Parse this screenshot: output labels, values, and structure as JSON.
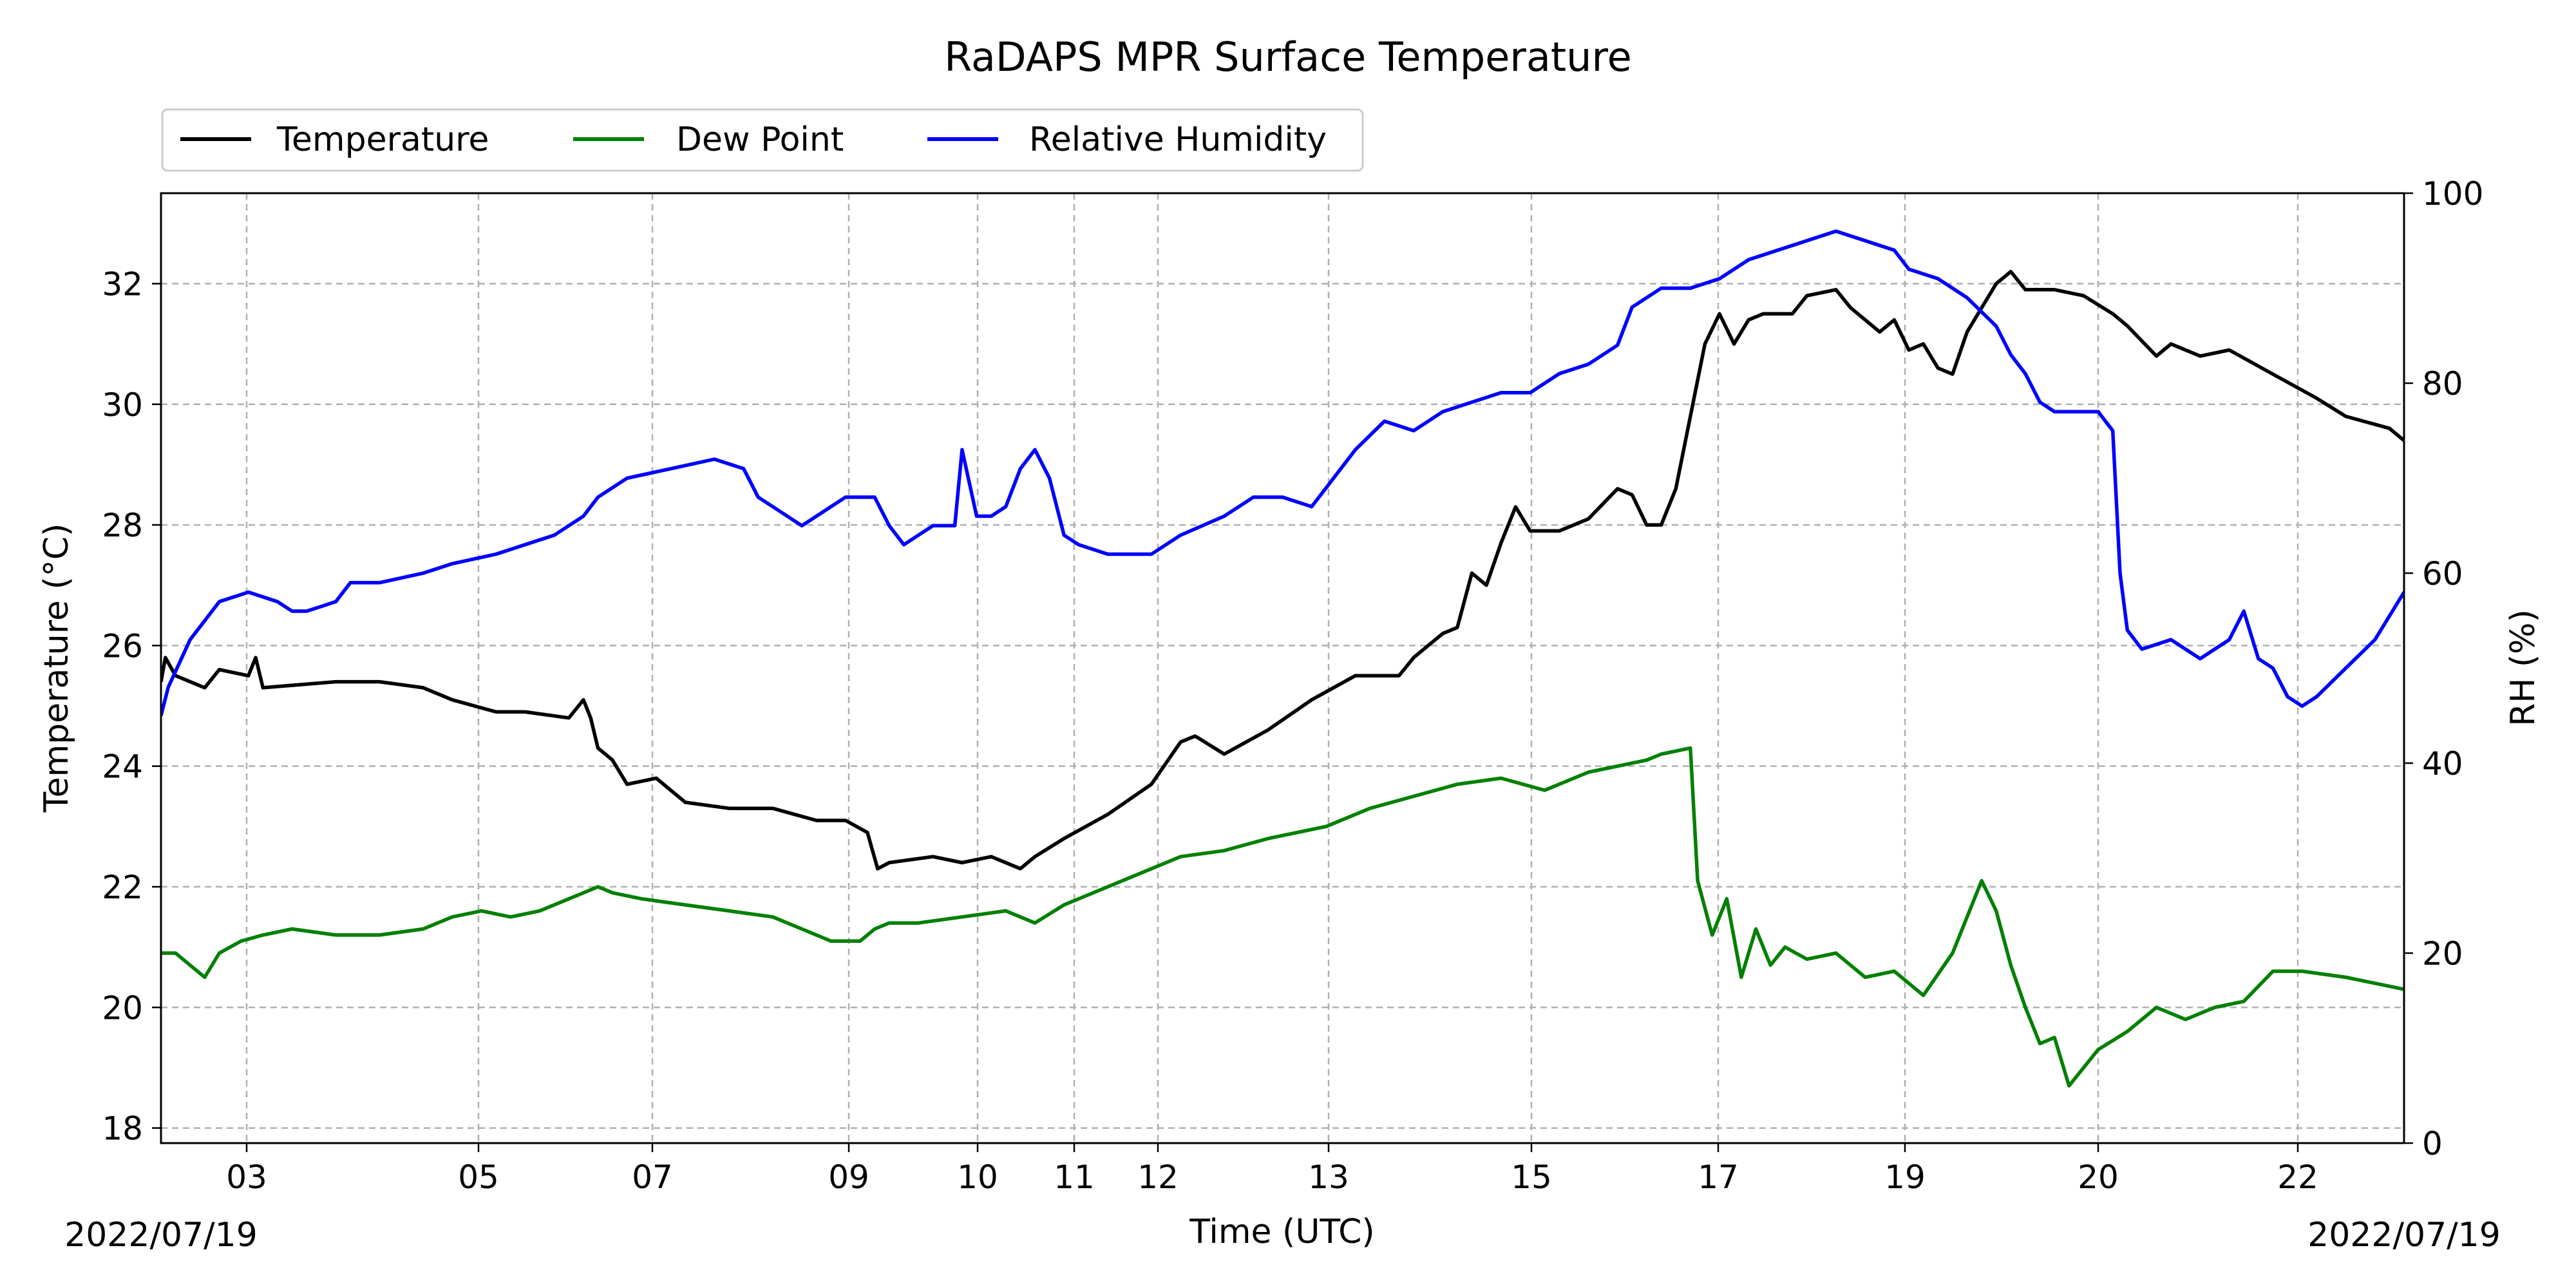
{
  "chart_data": {
    "type": "line",
    "title": "RaDAPS MPR Surface Temperature",
    "xlabel": "Time (UTC)",
    "ylabel_left": "Temperature ($^\\circ$C)",
    "ylabel_left_display": "Temperature (°C)",
    "ylabel_right": "RH (%)",
    "date_start": "2022/07/19",
    "date_end": "2022/07/19",
    "x_ticks": [
      "03",
      "05",
      "07",
      "09",
      "10",
      "11",
      "12",
      "13",
      "15",
      "17",
      "19",
      "20",
      "22"
    ],
    "ylim_left": [
      17.75,
      33.5
    ],
    "ylim_right": [
      0,
      100
    ],
    "yticks_left": [
      18,
      20,
      22,
      24,
      26,
      28,
      30,
      32
    ],
    "yticks_right": [
      0,
      20,
      40,
      60,
      80,
      100
    ],
    "grid": true,
    "legend": {
      "placement": "top-left, above plot",
      "entries": [
        "Temperature",
        "Dew Point",
        "Relative Humidity"
      ]
    },
    "colors": {
      "Temperature": "#000000",
      "Dew Point": "#008000",
      "Relative Humidity": "#0000ff"
    },
    "series": [
      {
        "name": "Temperature",
        "axis": "left",
        "points": [
          [
            0,
            25.4
          ],
          [
            0.03,
            25.8
          ],
          [
            0.1,
            25.5
          ],
          [
            0.3,
            25.3
          ],
          [
            0.4,
            25.6
          ],
          [
            0.6,
            25.5
          ],
          [
            0.65,
            25.8
          ],
          [
            0.7,
            25.3
          ],
          [
            1.2,
            25.4
          ],
          [
            1.5,
            25.4
          ],
          [
            1.8,
            25.3
          ],
          [
            2.0,
            25.1
          ],
          [
            2.3,
            24.9
          ],
          [
            2.5,
            24.9
          ],
          [
            2.8,
            24.8
          ],
          [
            2.9,
            25.1
          ],
          [
            2.95,
            24.8
          ],
          [
            3.0,
            24.3
          ],
          [
            3.1,
            24.1
          ],
          [
            3.2,
            23.7
          ],
          [
            3.4,
            23.8
          ],
          [
            3.6,
            23.4
          ],
          [
            3.9,
            23.3
          ],
          [
            4.2,
            23.3
          ],
          [
            4.5,
            23.1
          ],
          [
            4.7,
            23.1
          ],
          [
            4.85,
            22.9
          ],
          [
            4.92,
            22.3
          ],
          [
            5.0,
            22.4
          ],
          [
            5.3,
            22.5
          ],
          [
            5.5,
            22.4
          ],
          [
            5.7,
            22.5
          ],
          [
            5.9,
            22.3
          ],
          [
            6.0,
            22.5
          ],
          [
            6.2,
            22.8
          ],
          [
            6.5,
            23.2
          ],
          [
            6.8,
            23.7
          ],
          [
            7.0,
            24.4
          ],
          [
            7.1,
            24.5
          ],
          [
            7.3,
            24.2
          ],
          [
            7.6,
            24.6
          ],
          [
            7.9,
            25.1
          ],
          [
            8.2,
            25.5
          ],
          [
            8.5,
            25.5
          ],
          [
            8.6,
            25.8
          ],
          [
            8.8,
            26.2
          ],
          [
            8.9,
            26.3
          ],
          [
            9.0,
            27.2
          ],
          [
            9.1,
            27.0
          ],
          [
            9.2,
            27.7
          ],
          [
            9.3,
            28.3
          ],
          [
            9.4,
            27.9
          ],
          [
            9.6,
            27.9
          ],
          [
            9.8,
            28.1
          ],
          [
            10.0,
            28.6
          ],
          [
            10.1,
            28.5
          ],
          [
            10.2,
            28.0
          ],
          [
            10.3,
            28.0
          ],
          [
            10.4,
            28.6
          ],
          [
            10.5,
            29.8
          ],
          [
            10.6,
            31.0
          ],
          [
            10.7,
            31.5
          ],
          [
            10.8,
            31.0
          ],
          [
            10.9,
            31.4
          ],
          [
            11.0,
            31.5
          ],
          [
            11.2,
            31.5
          ],
          [
            11.3,
            31.8
          ],
          [
            11.5,
            31.9
          ],
          [
            11.6,
            31.6
          ],
          [
            11.8,
            31.2
          ],
          [
            11.9,
            31.4
          ],
          [
            12.0,
            30.9
          ],
          [
            12.1,
            31.0
          ],
          [
            12.2,
            30.6
          ],
          [
            12.3,
            30.5
          ],
          [
            12.4,
            31.2
          ],
          [
            12.5,
            31.6
          ],
          [
            12.6,
            32.0
          ],
          [
            12.7,
            32.2
          ],
          [
            12.8,
            31.9
          ],
          [
            13.0,
            31.9
          ],
          [
            13.2,
            31.8
          ],
          [
            13.4,
            31.5
          ],
          [
            13.5,
            31.3
          ],
          [
            13.7,
            30.8
          ],
          [
            13.8,
            31.0
          ],
          [
            14.0,
            30.8
          ],
          [
            14.2,
            30.9
          ],
          [
            14.5,
            30.5
          ],
          [
            14.8,
            30.1
          ],
          [
            15.0,
            29.8
          ],
          [
            15.3,
            29.6
          ],
          [
            15.4,
            29.4
          ]
        ]
      },
      {
        "name": "Dew Point",
        "axis": "left",
        "points": [
          [
            0,
            20.9
          ],
          [
            0.1,
            20.9
          ],
          [
            0.2,
            20.7
          ],
          [
            0.3,
            20.5
          ],
          [
            0.4,
            20.9
          ],
          [
            0.55,
            21.1
          ],
          [
            0.7,
            21.2
          ],
          [
            0.9,
            21.3
          ],
          [
            1.2,
            21.2
          ],
          [
            1.5,
            21.2
          ],
          [
            1.8,
            21.3
          ],
          [
            2.0,
            21.5
          ],
          [
            2.2,
            21.6
          ],
          [
            2.4,
            21.5
          ],
          [
            2.6,
            21.6
          ],
          [
            2.8,
            21.8
          ],
          [
            3.0,
            22.0
          ],
          [
            3.1,
            21.9
          ],
          [
            3.3,
            21.8
          ],
          [
            3.6,
            21.7
          ],
          [
            3.9,
            21.6
          ],
          [
            4.2,
            21.5
          ],
          [
            4.4,
            21.3
          ],
          [
            4.6,
            21.1
          ],
          [
            4.8,
            21.1
          ],
          [
            4.9,
            21.3
          ],
          [
            5.0,
            21.4
          ],
          [
            5.2,
            21.4
          ],
          [
            5.5,
            21.5
          ],
          [
            5.8,
            21.6
          ],
          [
            6.0,
            21.4
          ],
          [
            6.2,
            21.7
          ],
          [
            6.5,
            22.0
          ],
          [
            6.8,
            22.3
          ],
          [
            7.0,
            22.5
          ],
          [
            7.3,
            22.6
          ],
          [
            7.6,
            22.8
          ],
          [
            8.0,
            23.0
          ],
          [
            8.3,
            23.3
          ],
          [
            8.6,
            23.5
          ],
          [
            8.9,
            23.7
          ],
          [
            9.2,
            23.8
          ],
          [
            9.5,
            23.6
          ],
          [
            9.8,
            23.9
          ],
          [
            10.0,
            24.0
          ],
          [
            10.2,
            24.1
          ],
          [
            10.3,
            24.2
          ],
          [
            10.5,
            24.3
          ],
          [
            10.55,
            22.1
          ],
          [
            10.65,
            21.2
          ],
          [
            10.75,
            21.8
          ],
          [
            10.85,
            20.5
          ],
          [
            10.95,
            21.3
          ],
          [
            11.05,
            20.7
          ],
          [
            11.15,
            21.0
          ],
          [
            11.3,
            20.8
          ],
          [
            11.5,
            20.9
          ],
          [
            11.7,
            20.5
          ],
          [
            11.9,
            20.6
          ],
          [
            12.1,
            20.2
          ],
          [
            12.3,
            20.9
          ],
          [
            12.5,
            22.1
          ],
          [
            12.6,
            21.6
          ],
          [
            12.7,
            20.7
          ],
          [
            12.8,
            20.0
          ],
          [
            12.9,
            19.4
          ],
          [
            13.0,
            19.5
          ],
          [
            13.1,
            18.7
          ],
          [
            13.2,
            19.0
          ],
          [
            13.3,
            19.3
          ],
          [
            13.5,
            19.6
          ],
          [
            13.7,
            20.0
          ],
          [
            13.9,
            19.8
          ],
          [
            14.1,
            20.0
          ],
          [
            14.3,
            20.1
          ],
          [
            14.5,
            20.6
          ],
          [
            14.7,
            20.6
          ],
          [
            15.0,
            20.5
          ],
          [
            15.2,
            20.4
          ],
          [
            15.4,
            20.3
          ]
        ]
      },
      {
        "name": "Relative Humidity",
        "axis": "right",
        "points": [
          [
            0,
            45
          ],
          [
            0.05,
            48
          ],
          [
            0.2,
            53
          ],
          [
            0.4,
            57
          ],
          [
            0.6,
            58
          ],
          [
            0.8,
            57
          ],
          [
            0.9,
            56
          ],
          [
            1.0,
            56
          ],
          [
            1.2,
            57
          ],
          [
            1.3,
            59
          ],
          [
            1.5,
            59
          ],
          [
            1.8,
            60
          ],
          [
            2.0,
            61
          ],
          [
            2.3,
            62
          ],
          [
            2.5,
            63
          ],
          [
            2.7,
            64
          ],
          [
            2.9,
            66
          ],
          [
            3.0,
            68
          ],
          [
            3.2,
            70
          ],
          [
            3.5,
            71
          ],
          [
            3.8,
            72
          ],
          [
            4.0,
            71
          ],
          [
            4.1,
            68
          ],
          [
            4.3,
            66
          ],
          [
            4.4,
            65
          ],
          [
            4.6,
            67
          ],
          [
            4.7,
            68
          ],
          [
            4.9,
            68
          ],
          [
            5.0,
            65
          ],
          [
            5.1,
            63
          ],
          [
            5.2,
            64
          ],
          [
            5.3,
            65
          ],
          [
            5.45,
            65
          ],
          [
            5.5,
            73
          ],
          [
            5.6,
            66
          ],
          [
            5.7,
            66
          ],
          [
            5.8,
            67
          ],
          [
            5.9,
            71
          ],
          [
            6.0,
            73
          ],
          [
            6.1,
            70
          ],
          [
            6.2,
            64
          ],
          [
            6.3,
            63
          ],
          [
            6.5,
            62
          ],
          [
            6.6,
            62
          ],
          [
            6.8,
            62
          ],
          [
            7.0,
            64
          ],
          [
            7.3,
            66
          ],
          [
            7.5,
            68
          ],
          [
            7.7,
            68
          ],
          [
            7.9,
            67
          ],
          [
            8.0,
            69
          ],
          [
            8.2,
            73
          ],
          [
            8.4,
            76
          ],
          [
            8.6,
            75
          ],
          [
            8.8,
            77
          ],
          [
            9.0,
            78
          ],
          [
            9.2,
            79
          ],
          [
            9.4,
            79
          ],
          [
            9.6,
            81
          ],
          [
            9.8,
            82
          ],
          [
            10.0,
            84
          ],
          [
            10.1,
            88
          ],
          [
            10.3,
            90
          ],
          [
            10.5,
            90
          ],
          [
            10.7,
            91
          ],
          [
            10.9,
            93
          ],
          [
            11.1,
            94
          ],
          [
            11.3,
            95
          ],
          [
            11.5,
            96
          ],
          [
            11.7,
            95
          ],
          [
            11.9,
            94
          ],
          [
            12.0,
            92
          ],
          [
            12.2,
            91
          ],
          [
            12.4,
            89
          ],
          [
            12.6,
            86
          ],
          [
            12.7,
            83
          ],
          [
            12.8,
            81
          ],
          [
            12.9,
            78
          ],
          [
            13.0,
            77
          ],
          [
            13.2,
            77
          ],
          [
            13.3,
            77
          ],
          [
            13.4,
            75
          ],
          [
            13.45,
            60
          ],
          [
            13.5,
            54
          ],
          [
            13.6,
            52
          ],
          [
            13.8,
            53
          ],
          [
            14.0,
            51
          ],
          [
            14.2,
            53
          ],
          [
            14.3,
            56
          ],
          [
            14.4,
            51
          ],
          [
            14.5,
            50
          ],
          [
            14.6,
            47
          ],
          [
            14.7,
            46
          ],
          [
            14.8,
            47
          ],
          [
            15.0,
            50
          ],
          [
            15.2,
            53
          ],
          [
            15.4,
            58
          ]
        ]
      }
    ]
  }
}
